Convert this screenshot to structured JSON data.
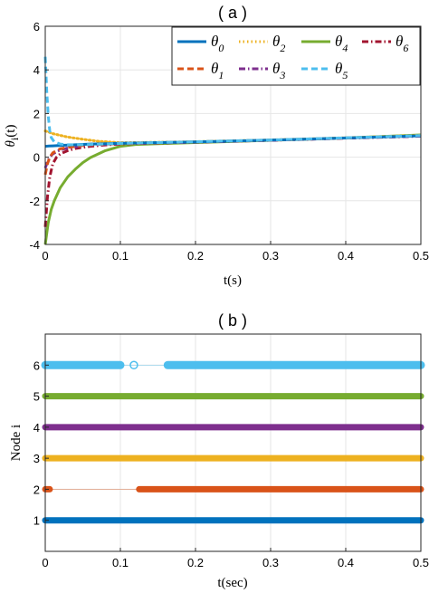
{
  "chart_data": [
    {
      "panel": "a",
      "type": "line",
      "title": "( a )",
      "xlabel": "t(s)",
      "ylabel_main": "θ",
      "ylabel_sub": "i",
      "ylabel_tail": "(t)",
      "xlim": [
        0,
        0.5
      ],
      "ylim": [
        -4,
        6
      ],
      "xticks": [
        "0",
        "0.1",
        "0.2",
        "0.3",
        "0.4",
        "0.5"
      ],
      "yticks": [
        "-4",
        "-2",
        "0",
        "2",
        "4",
        "6"
      ],
      "grid": true,
      "legend_position": "top-right",
      "series": [
        {
          "name": "θ",
          "sub": "0",
          "color": "#0072BD",
          "dash": "solid",
          "x": [
            0,
            0.005,
            0.01,
            0.02,
            0.04,
            0.06,
            0.08,
            0.1,
            0.15,
            0.2,
            0.25,
            0.3,
            0.35,
            0.4,
            0.45,
            0.5
          ],
          "y": [
            0.5,
            0.51,
            0.52,
            0.54,
            0.57,
            0.6,
            0.62,
            0.64,
            0.67,
            0.7,
            0.74,
            0.78,
            0.83,
            0.88,
            0.93,
            0.98
          ]
        },
        {
          "name": "θ",
          "sub": "1",
          "color": "#D95319",
          "dash": "dashed",
          "x": [
            0,
            0.003,
            0.006,
            0.01,
            0.015,
            0.02,
            0.03,
            0.05,
            0.07,
            0.1,
            0.15,
            0.2,
            0.3,
            0.4,
            0.5
          ],
          "y": [
            -0.8,
            -0.3,
            0.0,
            0.2,
            0.3,
            0.38,
            0.45,
            0.53,
            0.58,
            0.62,
            0.66,
            0.7,
            0.78,
            0.88,
            0.98
          ]
        },
        {
          "name": "θ",
          "sub": "2",
          "color": "#EDB120",
          "dash": "dotted",
          "x": [
            0,
            0.005,
            0.01,
            0.02,
            0.03,
            0.05,
            0.07,
            0.1,
            0.15,
            0.2,
            0.3,
            0.4,
            0.5
          ],
          "y": [
            1.2,
            1.15,
            1.08,
            1.0,
            0.92,
            0.82,
            0.73,
            0.66,
            0.68,
            0.71,
            0.79,
            0.89,
            1.0
          ]
        },
        {
          "name": "θ",
          "sub": "3",
          "color": "#7E2F8E",
          "dash": "dashdot",
          "x": [
            0,
            0.003,
            0.006,
            0.01,
            0.015,
            0.02,
            0.03,
            0.05,
            0.07,
            0.1,
            0.15,
            0.2,
            0.3,
            0.4,
            0.5
          ],
          "y": [
            -0.5,
            -0.2,
            0.0,
            0.15,
            0.25,
            0.33,
            0.42,
            0.52,
            0.57,
            0.62,
            0.65,
            0.69,
            0.77,
            0.87,
            0.96
          ]
        },
        {
          "name": "θ",
          "sub": "4",
          "color": "#77AC30",
          "dash": "solid",
          "x": [
            0,
            0.004,
            0.008,
            0.012,
            0.02,
            0.03,
            0.04,
            0.05,
            0.06,
            0.08,
            0.1,
            0.12,
            0.15,
            0.2,
            0.3,
            0.4,
            0.5
          ],
          "y": [
            -4.0,
            -3.0,
            -2.4,
            -2.0,
            -1.4,
            -0.9,
            -0.55,
            -0.25,
            -0.02,
            0.3,
            0.5,
            0.58,
            0.62,
            0.67,
            0.77,
            0.88,
            1.02
          ]
        },
        {
          "name": "θ",
          "sub": "5",
          "color": "#4DBEEE",
          "dash": "dashed",
          "x": [
            0,
            0.002,
            0.004,
            0.006,
            0.008,
            0.012,
            0.02,
            0.03,
            0.05,
            0.08,
            0.1,
            0.15,
            0.2,
            0.3,
            0.4,
            0.5
          ],
          "y": [
            4.6,
            3.0,
            1.9,
            1.2,
            0.9,
            0.7,
            0.6,
            0.57,
            0.57,
            0.6,
            0.63,
            0.67,
            0.71,
            0.79,
            0.89,
            0.99
          ]
        },
        {
          "name": "θ",
          "sub": "6",
          "color": "#A2142F",
          "dash": "dashdot",
          "x": [
            0,
            0.003,
            0.006,
            0.01,
            0.015,
            0.02,
            0.03,
            0.04,
            0.06,
            0.08,
            0.1,
            0.15,
            0.2,
            0.3,
            0.4,
            0.5
          ],
          "y": [
            -3.2,
            -1.8,
            -0.9,
            -0.3,
            0.0,
            0.15,
            0.3,
            0.4,
            0.5,
            0.56,
            0.6,
            0.65,
            0.69,
            0.77,
            0.87,
            0.97
          ]
        }
      ]
    },
    {
      "panel": "b",
      "type": "scatter",
      "title": "( b )",
      "xlabel": "t(sec)",
      "ylabel": "Node i",
      "xlim": [
        0,
        0.5
      ],
      "ylim": [
        0,
        7
      ],
      "xticks": [
        "0",
        "0.1",
        "0.2",
        "0.3",
        "0.4",
        "0.5"
      ],
      "yticks": [
        "1",
        "2",
        "3",
        "4",
        "5",
        "6"
      ],
      "grid": true,
      "series": [
        {
          "node": 1,
          "color": "#0072BD",
          "segments": [
            [
              0,
              0.5
            ]
          ],
          "marker": "x"
        },
        {
          "node": 2,
          "color": "#D95319",
          "segments": [
            [
              0,
              0.006
            ],
            [
              0.125,
              0.5
            ]
          ],
          "marker": "x"
        },
        {
          "node": 3,
          "color": "#EDB120",
          "segments": [
            [
              0,
              0.5
            ]
          ],
          "marker": "x"
        },
        {
          "node": 4,
          "color": "#7E2F8E",
          "segments": [
            [
              0,
              0.5
            ]
          ],
          "marker": "x"
        },
        {
          "node": 5,
          "color": "#77AC30",
          "segments": [
            [
              0,
              0.5
            ]
          ],
          "marker": "star"
        },
        {
          "node": 6,
          "color": "#4DBEEE",
          "segments": [
            [
              0,
              0.1
            ],
            [
              0.163,
              0.5
            ]
          ],
          "marker": "o",
          "isolated": [
            0.118
          ]
        }
      ]
    }
  ]
}
